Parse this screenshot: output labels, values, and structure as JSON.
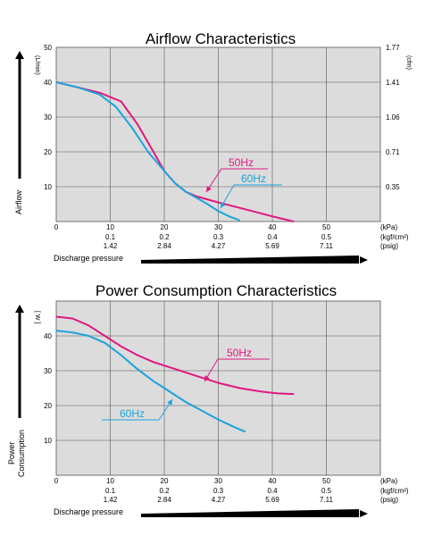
{
  "chart_data": [
    {
      "type": "line",
      "title": "Airflow Characteristics",
      "xlabel": "Discharge pressure",
      "ylabel": "Airflow",
      "y_unit": "(L/min)",
      "y2_unit": "(cfm)",
      "x_units": [
        "(kPa)",
        "(kgf/cm²)",
        "(psig)"
      ],
      "xlim": [
        0,
        60
      ],
      "ylim": [
        0,
        50
      ],
      "x_ticks": [
        "0",
        "10",
        "20",
        "30",
        "40",
        "50"
      ],
      "x_ticks_kgf": [
        "0.1",
        "0.2",
        "0.3",
        "0.4",
        "0.5"
      ],
      "x_ticks_psig": [
        "1.42",
        "2.84",
        "4.27",
        "5.69",
        "7.11"
      ],
      "y_ticks": [
        "10",
        "20",
        "30",
        "40",
        "50"
      ],
      "y2_ticks": [
        "0.35",
        "0.71",
        "1.06",
        "1.41",
        "1.77"
      ],
      "grid": true,
      "series": [
        {
          "name": "50Hz",
          "color": "#e0177f",
          "x": [
            0,
            4,
            8,
            12,
            15,
            18,
            20,
            22,
            24,
            26,
            30,
            35,
            40,
            44
          ],
          "y": [
            40,
            38.5,
            37,
            34.5,
            28,
            20,
            14.5,
            11,
            8.5,
            7.2,
            5.5,
            3.5,
            1.5,
            0
          ]
        },
        {
          "name": "60Hz",
          "color": "#1aa3dc",
          "x": [
            0,
            4,
            8,
            11,
            14,
            17,
            20,
            22,
            24,
            26,
            28,
            30,
            32,
            34
          ],
          "y": [
            40,
            38.5,
            36.5,
            33,
            27,
            20,
            14.5,
            11,
            8.5,
            6.8,
            5,
            3,
            1.5,
            0.3
          ]
        }
      ],
      "annotations": [
        "50Hz",
        "60Hz"
      ]
    },
    {
      "type": "line",
      "title": "Power Consumption Characteristics",
      "xlabel": "Discharge pressure",
      "ylabel": "Power Consumption",
      "y_unit": "[ W ]",
      "x_units": [
        "(kPa)",
        "(kgf/cm²)",
        "(psig)"
      ],
      "xlim": [
        0,
        60
      ],
      "ylim": [
        0,
        50
      ],
      "x_ticks": [
        "0",
        "10",
        "20",
        "30",
        "40",
        "50"
      ],
      "x_ticks_kgf": [
        "0.1",
        "0.2",
        "0.3",
        "0.4",
        "0.5"
      ],
      "x_ticks_psig": [
        "1.42",
        "2.84",
        "4.27",
        "5.69",
        "7.11"
      ],
      "y_ticks": [
        "10",
        "20",
        "30",
        "40"
      ],
      "grid": true,
      "series": [
        {
          "name": "50Hz",
          "color": "#e0177f",
          "x": [
            0,
            3,
            6,
            9,
            12,
            15,
            18,
            22,
            26,
            30,
            34,
            38,
            41,
            44
          ],
          "y": [
            45.5,
            45,
            43,
            40,
            37,
            34.5,
            32.5,
            30.5,
            28.5,
            26.5,
            25,
            24,
            23.5,
            23.3
          ]
        },
        {
          "name": "60Hz",
          "color": "#1aa3dc",
          "x": [
            0,
            3,
            6,
            9,
            12,
            15,
            18,
            21,
            24,
            27,
            30,
            33,
            35
          ],
          "y": [
            41.5,
            41,
            40,
            38,
            34.5,
            30.5,
            27,
            24,
            21,
            18.5,
            16,
            13.8,
            12.5
          ]
        }
      ],
      "annotations": [
        "50Hz",
        "60Hz"
      ]
    }
  ]
}
